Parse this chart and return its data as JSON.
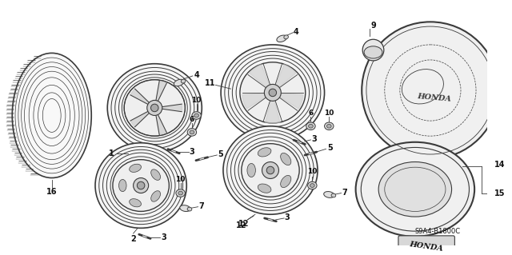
{
  "bg_color": "#ffffff",
  "line_color": "#3a3a3a",
  "diagram_code_text": "S9A4-B1800C"
}
